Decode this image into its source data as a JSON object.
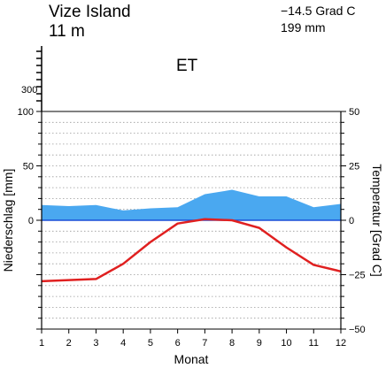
{
  "header": {
    "station": "Vize Island",
    "elevation": "11 m",
    "mean_temp": "−14.5 Grad C",
    "annual_precip": "199 mm",
    "climate_class": "ET"
  },
  "chart_data": {
    "type": "line",
    "title": "Vize Island",
    "xlabel": "Monat",
    "ylabel_left": "Niederschlag [mm]",
    "ylabel_right": "Temperatur [Grad C]",
    "x": [
      1,
      2,
      3,
      4,
      5,
      6,
      7,
      8,
      9,
      10,
      11,
      12
    ],
    "precip_ylim": [
      -100,
      100
    ],
    "precip_extended_tick": 300,
    "temp_ylim": [
      -50,
      50
    ],
    "series": [
      {
        "name": "Niederschlag",
        "unit": "mm",
        "kind": "area",
        "color": "#4aa8f0",
        "values": [
          14,
          13,
          14,
          9,
          11,
          12,
          24,
          28,
          22,
          22,
          12,
          15
        ]
      },
      {
        "name": "Temperatur",
        "unit": "Grad C",
        "kind": "line",
        "color": "#e02020",
        "values": [
          -28,
          -27.5,
          -27,
          -20,
          -10,
          -1.5,
          0.5,
          0,
          -3.5,
          -12.5,
          -20.5,
          -23.5
        ]
      }
    ],
    "left_ticks": [
      {
        "label": "100",
        "value": 100
      },
      {
        "label": "50",
        "value": 50
      },
      {
        "label": "0",
        "value": 0
      }
    ],
    "upper_tick_label": "300",
    "right_ticks": [
      {
        "label": "50",
        "value": 50
      },
      {
        "label": "25",
        "value": 25
      },
      {
        "label": "0",
        "value": 0
      },
      {
        "label": "−25",
        "value": -25
      },
      {
        "label": "−50",
        "value": -50
      }
    ],
    "x_tick_labels": [
      "1",
      "2",
      "3",
      "4",
      "5",
      "6",
      "7",
      "8",
      "9",
      "10",
      "11",
      "12"
    ]
  }
}
